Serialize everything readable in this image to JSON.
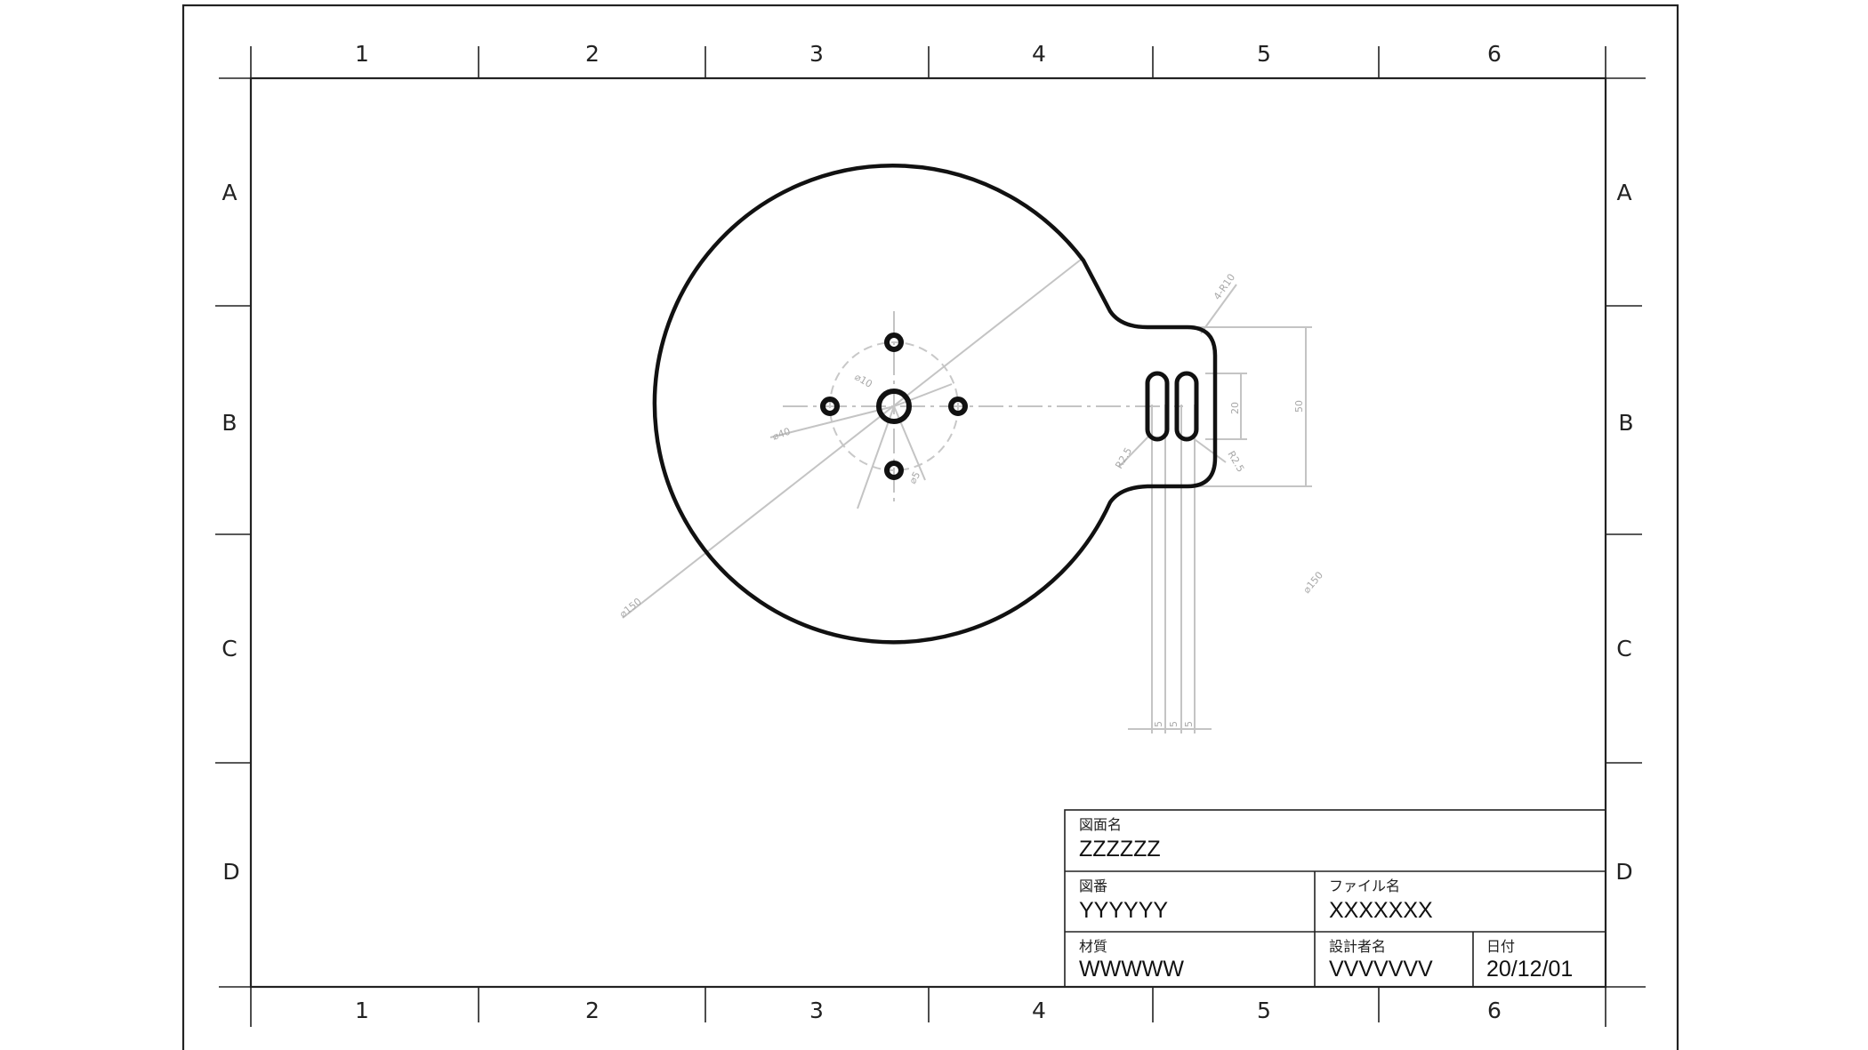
{
  "zones": {
    "columns": [
      "1",
      "2",
      "3",
      "4",
      "5",
      "6"
    ],
    "rows": [
      "A",
      "B",
      "C",
      "D"
    ]
  },
  "dimensions": {
    "outer_circle_dia": "⌀150",
    "outer_circle_dia_right": "⌀150",
    "pcd_dia": "⌀40",
    "bolt_hole_dia": "⌀10",
    "center_hole_dia": "⌀5",
    "tab_corner": "4-R10",
    "slot_width_a": "R2.5",
    "slot_width_b": "R2.5",
    "slot_spacing": [
      "5",
      "5",
      "5"
    ],
    "slot_length": "20",
    "tab_height": "50"
  },
  "title_block": {
    "drawing_name_label": "図面名",
    "drawing_name": "ZZZZZZ",
    "drawing_number_label": "図番",
    "drawing_number": "YYYYYY",
    "file_name_label": "ファイル名",
    "file_name": "XXXXXXX",
    "material_label": "材質",
    "material": "WWWWW",
    "designer_label": "設計者名",
    "designer": "VVVVVVV",
    "date_label": "日付",
    "date": "20/12/01"
  }
}
